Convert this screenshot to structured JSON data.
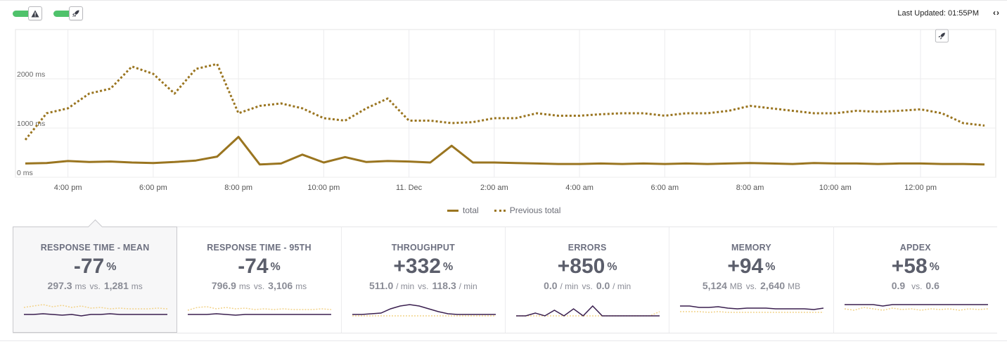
{
  "header": {
    "last_updated": "Last Updated: 01:55PM",
    "nav_arrows": "‹›"
  },
  "chart_data": {
    "type": "line",
    "x": [
      "3:00 pm",
      "3:30 pm",
      "4:00 pm",
      "4:30 pm",
      "5:00 pm",
      "5:30 pm",
      "6:00 pm",
      "6:30 pm",
      "7:00 pm",
      "7:30 pm",
      "8:00 pm",
      "8:30 pm",
      "9:00 pm",
      "9:30 pm",
      "10:00 pm",
      "10:30 pm",
      "11:00 pm",
      "11:30 pm",
      "11. Dec",
      "12:30 am",
      "1:00 am",
      "1:30 am",
      "2:00 am",
      "2:30 am",
      "3:00 am",
      "3:30 am",
      "4:00 am",
      "4:30 am",
      "5:00 am",
      "5:30 am",
      "6:00 am",
      "6:30 am",
      "7:00 am",
      "7:30 am",
      "8:00 am",
      "8:30 am",
      "9:00 am",
      "9:30 am",
      "10:00 am",
      "10:30 am",
      "11:00 am",
      "11:30 am",
      "12:00 pm",
      "12:30 pm",
      "1:00 pm",
      "1:30 pm"
    ],
    "series": [
      {
        "name": "total",
        "style": "solid",
        "values": [
          280,
          290,
          330,
          310,
          320,
          300,
          290,
          310,
          340,
          420,
          820,
          260,
          280,
          460,
          300,
          410,
          310,
          330,
          320,
          300,
          640,
          300,
          300,
          290,
          280,
          270,
          270,
          280,
          270,
          280,
          270,
          280,
          270,
          280,
          290,
          280,
          270,
          290,
          280,
          280,
          270,
          280,
          280,
          270,
          270,
          260
        ]
      },
      {
        "name": "Previous total",
        "style": "dotted",
        "values": [
          760,
          1300,
          1400,
          1700,
          1800,
          2250,
          2100,
          1700,
          2200,
          2300,
          1300,
          1450,
          1500,
          1400,
          1200,
          1150,
          1400,
          1600,
          1150,
          1150,
          1100,
          1120,
          1200,
          1200,
          1300,
          1250,
          1250,
          1280,
          1300,
          1300,
          1250,
          1300,
          1300,
          1350,
          1450,
          1400,
          1350,
          1300,
          1300,
          1350,
          1330,
          1350,
          1380,
          1300,
          1100,
          1050
        ]
      }
    ],
    "x_ticks": [
      "4:00 pm",
      "6:00 pm",
      "8:00 pm",
      "10:00 pm",
      "11. Dec",
      "2:00 am",
      "4:00 am",
      "6:00 am",
      "8:00 am",
      "10:00 am",
      "12:00 pm"
    ],
    "y_ticks": [
      "0 ms",
      "1000 ms",
      "2000 ms"
    ],
    "ylim": [
      0,
      3000
    ],
    "deploy_marker_x": "12:30 pm",
    "legend_position": "bottom-center",
    "colors": {
      "total": "#9a7520",
      "previous": "#9a7520"
    }
  },
  "legend": {
    "solid_label": "total",
    "dotted_label": "Previous total"
  },
  "cards": [
    {
      "title": "RESPONSE TIME - MEAN",
      "pct": "-77",
      "pct_unit": "%",
      "cur": "297.3",
      "cur_unit": "ms",
      "vs": "vs.",
      "prev": "1,281",
      "prev_unit": "ms"
    },
    {
      "title": "RESPONSE TIME - 95TH",
      "pct": "-74",
      "pct_unit": "%",
      "cur": "796.9",
      "cur_unit": "ms",
      "vs": "vs.",
      "prev": "3,106",
      "prev_unit": "ms"
    },
    {
      "title": "THROUGHPUT",
      "pct": "+332",
      "pct_unit": "%",
      "cur": "511.0",
      "cur_unit": "/ min",
      "vs": "vs.",
      "prev": "118.3",
      "prev_unit": "/ min"
    },
    {
      "title": "ERRORS",
      "pct": "+850",
      "pct_unit": "%",
      "cur": "0.0",
      "cur_unit": "/ min",
      "vs": "vs.",
      "prev": "0.0",
      "prev_unit": "/ min"
    },
    {
      "title": "MEMORY",
      "pct": "+94",
      "pct_unit": "%",
      "cur": "5,124",
      "cur_unit": "MB",
      "vs": "vs.",
      "prev": "2,640",
      "prev_unit": "MB"
    },
    {
      "title": "APDEX",
      "pct": "+58",
      "pct_unit": "%",
      "cur": "0.9",
      "cur_unit": "",
      "vs": "vs.",
      "prev": "0.6",
      "prev_unit": ""
    }
  ],
  "colors": {
    "accent": "#9a7520",
    "spark_current": "#3a1f4f",
    "spark_previous": "#f2d38a",
    "toggle_on": "#4fc26b"
  }
}
